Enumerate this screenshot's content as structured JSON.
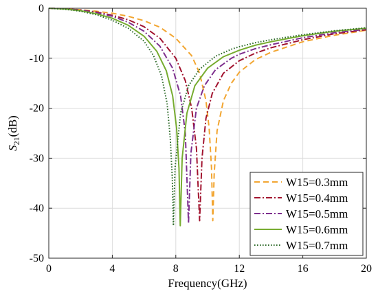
{
  "chart_data": {
    "type": "line",
    "xlabel": "Frequency(GHz)",
    "ylabel": {
      "base": "S",
      "sub": "21",
      "unit": "(dB)"
    },
    "xlim": [
      0,
      20
    ],
    "ylim": [
      -50,
      0
    ],
    "xticks": [
      "0",
      "4",
      "8",
      "12",
      "16",
      "20"
    ],
    "yticks": [
      "0",
      "-10",
      "-20",
      "-30",
      "-40",
      "-50"
    ],
    "grid": true,
    "legend_position": "bottom-right",
    "series": [
      {
        "name": "W15=0.3mm",
        "color": "#F2A530",
        "dash": "dashed",
        "points": [
          [
            0.0,
            0.0
          ],
          [
            1.0,
            -0.1
          ],
          [
            2.0,
            -0.3
          ],
          [
            3.0,
            -0.6
          ],
          [
            4.0,
            -1.0
          ],
          [
            5.0,
            -1.6
          ],
          [
            6.0,
            -2.5
          ],
          [
            7.0,
            -3.8
          ],
          [
            8.0,
            -6.0
          ],
          [
            9.0,
            -9.5
          ],
          [
            9.5,
            -13.0
          ],
          [
            9.9,
            -18.5
          ],
          [
            10.1,
            -24.0
          ],
          [
            10.25,
            -32.0
          ],
          [
            10.33,
            -42.5
          ],
          [
            10.42,
            -33.0
          ],
          [
            10.6,
            -24.5
          ],
          [
            11.0,
            -18.5
          ],
          [
            11.5,
            -15.0
          ],
          [
            12.0,
            -12.8
          ],
          [
            13.0,
            -10.3
          ],
          [
            14.0,
            -8.8
          ],
          [
            16.0,
            -6.7
          ],
          [
            18.0,
            -5.4
          ],
          [
            20.0,
            -4.4
          ]
        ]
      },
      {
        "name": "W15=0.4mm",
        "color": "#A2142F",
        "dash": "dashdot",
        "points": [
          [
            0.0,
            0.0
          ],
          [
            1.0,
            -0.1
          ],
          [
            2.0,
            -0.35
          ],
          [
            3.0,
            -0.75
          ],
          [
            4.0,
            -1.4
          ],
          [
            5.0,
            -2.3
          ],
          [
            6.0,
            -3.7
          ],
          [
            7.0,
            -6.0
          ],
          [
            8.0,
            -10.0
          ],
          [
            8.6,
            -14.5
          ],
          [
            9.0,
            -20.0
          ],
          [
            9.3,
            -28.0
          ],
          [
            9.5,
            -42.5
          ],
          [
            9.65,
            -30.0
          ],
          [
            9.9,
            -22.0
          ],
          [
            10.3,
            -17.0
          ],
          [
            11.0,
            -13.0
          ],
          [
            12.0,
            -10.5
          ],
          [
            13.0,
            -9.0
          ],
          [
            14.0,
            -7.9
          ],
          [
            16.0,
            -6.3
          ],
          [
            18.0,
            -5.1
          ],
          [
            20.0,
            -4.3
          ]
        ]
      },
      {
        "name": "W15=0.5mm",
        "color": "#7E2F8E",
        "dash": "dashdot",
        "points": [
          [
            0.0,
            0.0
          ],
          [
            1.0,
            -0.12
          ],
          [
            2.0,
            -0.4
          ],
          [
            3.0,
            -0.9
          ],
          [
            4.0,
            -1.6
          ],
          [
            5.0,
            -2.8
          ],
          [
            6.0,
            -4.6
          ],
          [
            7.0,
            -7.6
          ],
          [
            7.8,
            -12.0
          ],
          [
            8.3,
            -17.5
          ],
          [
            8.6,
            -25.0
          ],
          [
            8.8,
            -43.0
          ],
          [
            8.95,
            -29.0
          ],
          [
            9.3,
            -20.0
          ],
          [
            9.8,
            -15.5
          ],
          [
            10.5,
            -12.3
          ],
          [
            11.5,
            -10.0
          ],
          [
            12.0,
            -9.2
          ],
          [
            13.0,
            -8.1
          ],
          [
            14.0,
            -7.3
          ],
          [
            16.0,
            -5.9
          ],
          [
            18.0,
            -4.9
          ],
          [
            20.0,
            -4.2
          ]
        ]
      },
      {
        "name": "W15=0.6mm",
        "color": "#77AC30",
        "dash": "solid",
        "points": [
          [
            0.0,
            0.0
          ],
          [
            1.0,
            -0.15
          ],
          [
            2.0,
            -0.5
          ],
          [
            3.0,
            -1.1
          ],
          [
            4.0,
            -2.0
          ],
          [
            5.0,
            -3.4
          ],
          [
            6.0,
            -5.6
          ],
          [
            6.8,
            -8.6
          ],
          [
            7.4,
            -12.5
          ],
          [
            7.8,
            -17.5
          ],
          [
            8.05,
            -24.0
          ],
          [
            8.2,
            -32.0
          ],
          [
            8.28,
            -43.5
          ],
          [
            8.4,
            -30.0
          ],
          [
            8.7,
            -21.0
          ],
          [
            9.2,
            -15.5
          ],
          [
            10.0,
            -12.0
          ],
          [
            11.0,
            -9.7
          ],
          [
            12.0,
            -8.4
          ],
          [
            13.0,
            -7.4
          ],
          [
            14.0,
            -6.7
          ],
          [
            16.0,
            -5.5
          ],
          [
            18.0,
            -4.6
          ],
          [
            20.0,
            -4.0
          ]
        ]
      },
      {
        "name": "W15=0.7mm",
        "color": "#2E6B2A",
        "dash": "dotted",
        "points": [
          [
            0.0,
            0.0
          ],
          [
            1.0,
            -0.2
          ],
          [
            2.0,
            -0.6
          ],
          [
            3.0,
            -1.3
          ],
          [
            4.0,
            -2.4
          ],
          [
            5.0,
            -4.0
          ],
          [
            6.0,
            -6.6
          ],
          [
            6.6,
            -9.5
          ],
          [
            7.1,
            -13.5
          ],
          [
            7.45,
            -19.0
          ],
          [
            7.65,
            -26.0
          ],
          [
            7.78,
            -34.0
          ],
          [
            7.85,
            -43.5
          ],
          [
            7.95,
            -32.0
          ],
          [
            8.3,
            -21.0
          ],
          [
            8.8,
            -15.5
          ],
          [
            9.5,
            -12.2
          ],
          [
            10.5,
            -9.6
          ],
          [
            11.5,
            -8.2
          ],
          [
            12.0,
            -7.7
          ],
          [
            13.0,
            -6.9
          ],
          [
            14.0,
            -6.3
          ],
          [
            16.0,
            -5.3
          ],
          [
            18.0,
            -4.5
          ],
          [
            20.0,
            -3.9
          ]
        ]
      }
    ]
  }
}
